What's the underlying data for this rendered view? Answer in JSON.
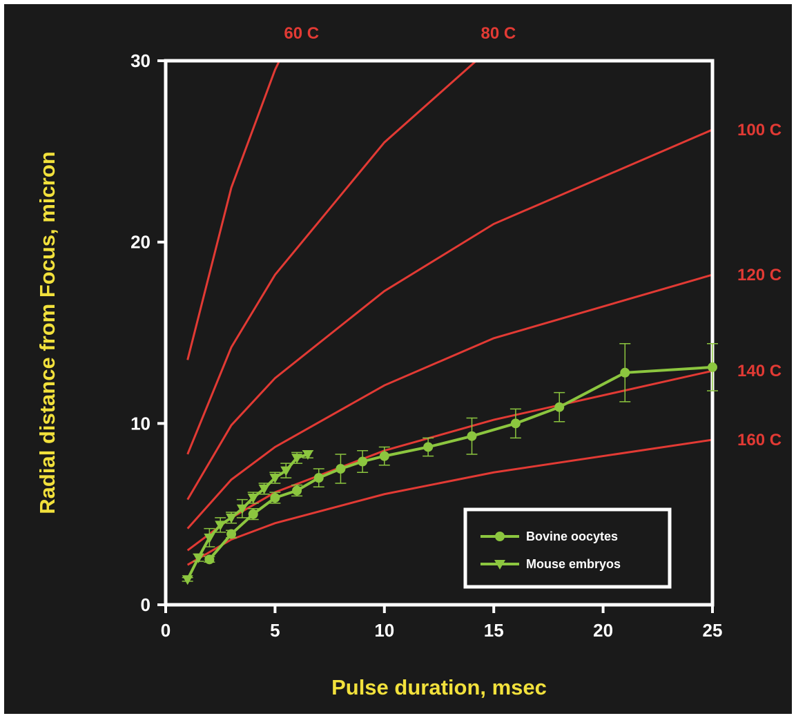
{
  "chart_data": {
    "type": "line",
    "xlabel": "Pulse duration, msec",
    "ylabel": "Radial distance from Focus, micron",
    "xlim": [
      0,
      25
    ],
    "ylim": [
      0,
      30
    ],
    "x_ticks": [
      "0",
      "5",
      "10",
      "15",
      "20",
      "25"
    ],
    "y_ticks": [
      "0",
      "10",
      "20",
      "30"
    ],
    "grid": false,
    "legend_position": "bottom-right",
    "colors": {
      "background": "#1a1a1a",
      "axes": "#ffffff",
      "isotherm": "#e23a34",
      "data": "#8cc63f",
      "axis_title": "#f2e13c"
    },
    "isotherms": [
      {
        "name": "60 C",
        "x": [
          1,
          3,
          5,
          5.2
        ],
        "y": [
          13.5,
          23,
          29.5,
          30
        ]
      },
      {
        "name": "80 C",
        "x": [
          1,
          3,
          5,
          10,
          14.2
        ],
        "y": [
          8.3,
          14.2,
          18.2,
          25.5,
          30
        ]
      },
      {
        "name": "100 C",
        "x": [
          1,
          3,
          5,
          10,
          15,
          25
        ],
        "y": [
          5.8,
          9.9,
          12.5,
          17.3,
          21,
          26.2
        ]
      },
      {
        "name": "120 C",
        "x": [
          1,
          3,
          5,
          10,
          15,
          25
        ],
        "y": [
          4.2,
          6.9,
          8.7,
          12.1,
          14.7,
          18.2
        ]
      },
      {
        "name": "140 C",
        "x": [
          1,
          3,
          5,
          10,
          15,
          25
        ],
        "y": [
          3,
          4.8,
          6.2,
          8.5,
          10.2,
          12.9
        ]
      },
      {
        "name": "160 C",
        "x": [
          1,
          3,
          5,
          10,
          15,
          25
        ],
        "y": [
          2.2,
          3.6,
          4.5,
          6.1,
          7.3,
          9.1
        ]
      }
    ],
    "series": [
      {
        "name": "Bovine oocytes",
        "marker": "diamond",
        "x": [
          2,
          3,
          4,
          5,
          6,
          7,
          8,
          9,
          10,
          12,
          14,
          16,
          18,
          21,
          25
        ],
        "y": [
          2.5,
          3.9,
          5.0,
          5.9,
          6.3,
          7.0,
          7.5,
          7.9,
          8.2,
          8.7,
          9.3,
          10.0,
          10.9,
          12.8,
          13.1
        ],
        "err": [
          0.15,
          0.2,
          0.3,
          0.3,
          0.3,
          0.5,
          0.8,
          0.6,
          0.5,
          0.5,
          1.0,
          0.8,
          0.8,
          1.6,
          1.3
        ]
      },
      {
        "name": "Mouse embryos",
        "marker": "triangle-down",
        "x": [
          1,
          1.5,
          2,
          2.5,
          3,
          3.5,
          4,
          4.5,
          5,
          5.5,
          6,
          6.5
        ],
        "y": [
          1.4,
          2.6,
          3.7,
          4.4,
          4.8,
          5.3,
          5.9,
          6.4,
          7.0,
          7.4,
          8.1,
          8.3
        ],
        "err": [
          0.1,
          0.2,
          0.5,
          0.4,
          0.3,
          0.5,
          0.3,
          0.3,
          0.3,
          0.4,
          0.3,
          0.2
        ]
      }
    ]
  }
}
